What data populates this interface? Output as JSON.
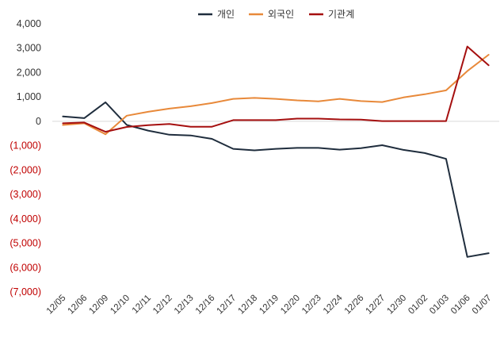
{
  "chart_data": {
    "type": "line",
    "title": "",
    "xlabel": "",
    "ylabel": "",
    "ylim": [
      -7000,
      4000
    ],
    "yticks": [
      4000,
      3000,
      2000,
      1000,
      0,
      -1000,
      -2000,
      -3000,
      -4000,
      -5000,
      -6000,
      -7000
    ],
    "ytick_labels": [
      "4,000",
      "3,000",
      "2,000",
      "1,000",
      "0",
      "(1,000)",
      "(2,000)",
      "(3,000)",
      "(4,000)",
      "(5,000)",
      "(6,000)",
      "(7,000)"
    ],
    "negative_tick_color": "#c00000",
    "positive_tick_color": "#333333",
    "grid": false,
    "zero_line": true,
    "legend_position": "top-center",
    "categories": [
      "12/05",
      "12/06",
      "12/09",
      "12/10",
      "12/11",
      "12/12",
      "12/13",
      "12/16",
      "12/17",
      "12/18",
      "12/19",
      "12/20",
      "12/23",
      "12/24",
      "12/26",
      "12/27",
      "12/30",
      "01/02",
      "01/03",
      "01/06",
      "01/07"
    ],
    "series": [
      {
        "name": "개인",
        "color": "#1f2d3d",
        "values": [
          200,
          130,
          780,
          -150,
          -380,
          -550,
          -580,
          -720,
          -1130,
          -1190,
          -1130,
          -1090,
          -1090,
          -1160,
          -1100,
          -980,
          -1170,
          -1300,
          -1540,
          -5560,
          -5410
        ]
      },
      {
        "name": "외국인",
        "color": "#e8893a",
        "values": [
          -150,
          -80,
          -530,
          230,
          390,
          520,
          620,
          750,
          920,
          960,
          920,
          860,
          820,
          920,
          830,
          790,
          980,
          1110,
          1270,
          2060,
          2730
        ]
      },
      {
        "name": "기관계",
        "color": "#a50f0f",
        "values": [
          -80,
          -50,
          -430,
          -230,
          -160,
          -110,
          -220,
          -220,
          50,
          50,
          50,
          110,
          110,
          80,
          70,
          10,
          10,
          10,
          10,
          3070,
          2300
        ]
      }
    ]
  }
}
